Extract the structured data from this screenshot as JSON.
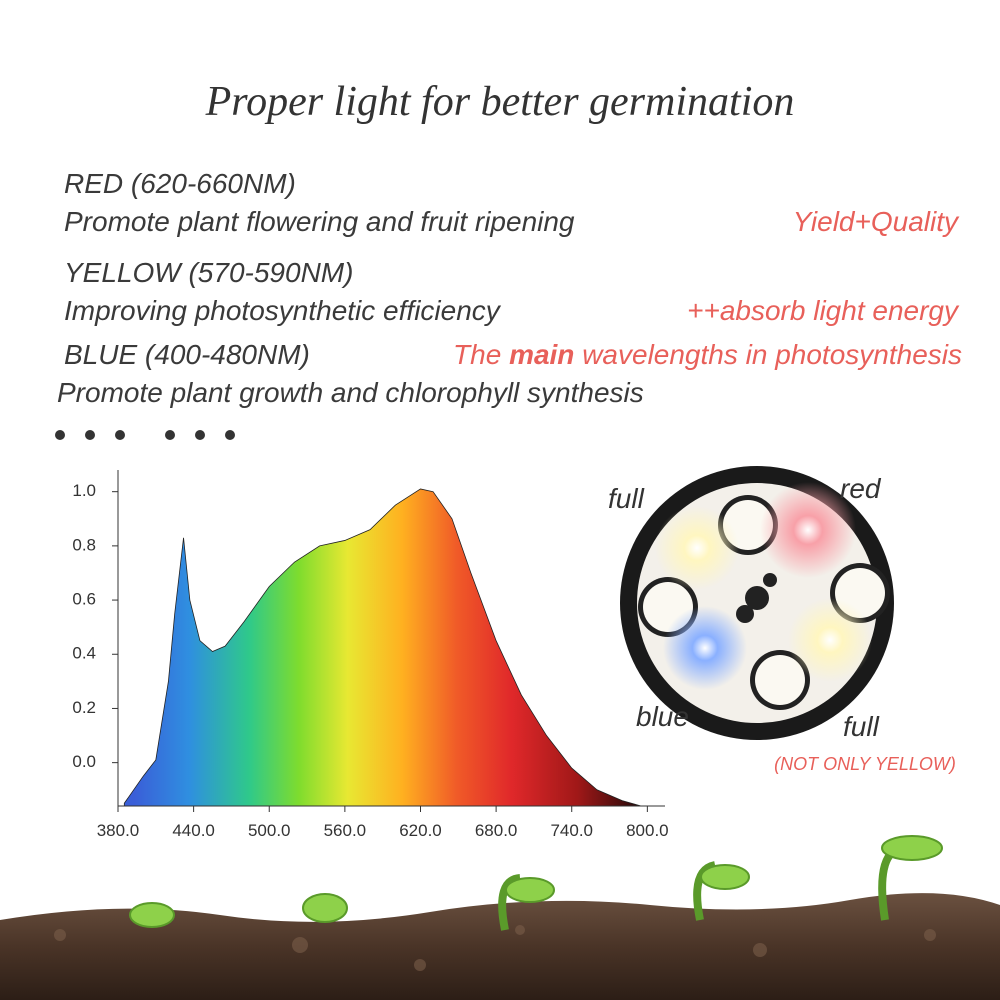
{
  "header": {
    "title": "Proper light for better germination"
  },
  "bands": [
    {
      "name": "RED (620-660NM)",
      "desc": "Promote plant flowering and fruit ripening",
      "note": "Yield+Quality"
    },
    {
      "name": "YELLOW (570-590NM)",
      "desc": "Improving photosynthetic efficiency",
      "note": "++absorb light energy"
    },
    {
      "name": "BLUE (400-480NM)",
      "note_parts": [
        "The ",
        "main",
        " wavelengths in photosynthesis"
      ],
      "desc": "Promote plant growth and chlorophyll synthesis"
    }
  ],
  "board": {
    "labels": [
      "full",
      "red",
      "blue",
      "full"
    ],
    "note": "(NOT ONLY YELLOW)"
  },
  "chart_data": {
    "type": "area",
    "x": [
      385,
      400,
      410,
      420,
      425,
      432,
      437,
      445,
      455,
      465,
      480,
      500,
      520,
      540,
      560,
      580,
      600,
      620,
      630,
      645,
      660,
      680,
      700,
      720,
      740,
      760,
      780,
      795
    ],
    "values": [
      -0.15,
      -0.05,
      0.01,
      0.3,
      0.55,
      0.83,
      0.6,
      0.45,
      0.41,
      0.43,
      0.52,
      0.65,
      0.74,
      0.8,
      0.82,
      0.86,
      0.95,
      1.01,
      1.0,
      0.9,
      0.7,
      0.45,
      0.25,
      0.1,
      -0.02,
      -0.1,
      -0.14,
      -0.16
    ],
    "xlim": [
      380,
      814
    ],
    "ylim": [
      -0.16,
      1.08
    ],
    "xticks": [
      {
        "value": 380,
        "label": "380.0"
      },
      {
        "value": 440,
        "label": "440.0"
      },
      {
        "value": 500,
        "label": "500.0"
      },
      {
        "value": 560,
        "label": "560.0"
      },
      {
        "value": 620,
        "label": "620.0"
      },
      {
        "value": 680,
        "label": "680.0"
      },
      {
        "value": 740,
        "label": "740.0"
      },
      {
        "value": 800,
        "label": "800.0"
      }
    ],
    "yticks": [
      {
        "value": 0,
        "label": "0.0"
      },
      0.2,
      0.4,
      0.6,
      0.8,
      {
        "value": 1,
        "label": "1.0"
      }
    ],
    "grid": false
  }
}
